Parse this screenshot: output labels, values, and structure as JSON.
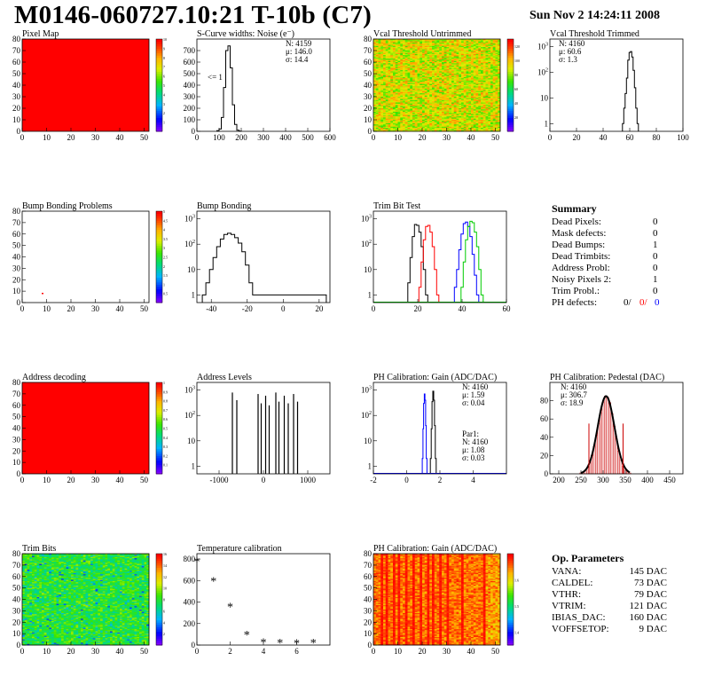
{
  "header": {
    "title": "M0146-060727.10:21 T-10b (C7)",
    "datetime": "Sun Nov  2 14:24:11 2008"
  },
  "chart_data": [
    {
      "id": "pixel_map",
      "type": "heatmap",
      "title": "Pixel Map",
      "xlim": [
        0,
        52
      ],
      "ylim": [
        0,
        80
      ],
      "xticks": [
        0,
        10,
        20,
        30,
        40,
        50
      ],
      "yticks": [
        0,
        10,
        20,
        30,
        40,
        50,
        60,
        70,
        80
      ],
      "palette_range": [
        0,
        10
      ],
      "palette_ticks": [
        1,
        2,
        3,
        4,
        5,
        6,
        7,
        8,
        9,
        10
      ],
      "uniform_value": 10
    },
    {
      "id": "scurve",
      "type": "line",
      "title": "S-Curve widths: Noise (e⁻)",
      "xlim": [
        0,
        600
      ],
      "ylim": [
        0,
        800
      ],
      "xticks": [
        0,
        100,
        200,
        300,
        400,
        500,
        600
      ],
      "yticks": [
        0,
        100,
        200,
        300,
        400,
        500,
        600,
        700
      ],
      "stats": [
        "N: 4159",
        "μ: 146.0",
        "σ: 14.4"
      ],
      "annotation": "<= 1",
      "x": [
        95,
        105,
        115,
        125,
        135,
        145,
        155,
        165,
        175,
        185,
        195
      ],
      "values": [
        5,
        20,
        120,
        380,
        700,
        740,
        550,
        230,
        60,
        10,
        2
      ]
    },
    {
      "id": "vcal_untrimmed",
      "type": "heatmap",
      "title": "Vcal Threshold Untrimmed",
      "xlim": [
        0,
        52
      ],
      "ylim": [
        0,
        80
      ],
      "xticks": [
        0,
        10,
        20,
        30,
        40,
        50
      ],
      "yticks": [
        0,
        10,
        20,
        30,
        40,
        50,
        60,
        70,
        80
      ],
      "palette_range": [
        0,
        130
      ],
      "palette_ticks": [
        20,
        40,
        60,
        80,
        100,
        120
      ],
      "typical_range": [
        70,
        110
      ]
    },
    {
      "id": "vcal_trimmed",
      "type": "line",
      "title": "Vcal Threshold Trimmed",
      "xlim": [
        0,
        100
      ],
      "ylim": [
        0.5,
        2000
      ],
      "log_y": true,
      "xticks": [
        0,
        20,
        40,
        60,
        80,
        100
      ],
      "yticks": [
        1,
        10,
        100,
        1000
      ],
      "stats": [
        "N: 4160",
        "μ: 60.6",
        "σ:  1.3"
      ],
      "x": [
        55,
        56,
        57,
        58,
        59,
        60,
        61,
        62,
        63,
        64,
        65,
        66
      ],
      "values": [
        1,
        4,
        15,
        60,
        300,
        600,
        650,
        400,
        120,
        25,
        4,
        1
      ]
    },
    {
      "id": "bump_problems",
      "type": "heatmap",
      "title": "Bump Bonding Problems",
      "xlim": [
        0,
        52
      ],
      "ylim": [
        0,
        80
      ],
      "xticks": [
        0,
        10,
        20,
        30,
        40,
        50
      ],
      "yticks": [
        0,
        10,
        20,
        30,
        40,
        50,
        60,
        70,
        80
      ],
      "palette_range": [
        0,
        5
      ],
      "palette_ticks": [
        0.5,
        1,
        1.5,
        2,
        2.5,
        3,
        3.5,
        4,
        4.5,
        5
      ],
      "points": [
        {
          "x": 8,
          "y": 7
        }
      ]
    },
    {
      "id": "bump_bonding",
      "type": "line",
      "title": "Bump Bonding",
      "xlim": [
        -48,
        26
      ],
      "ylim": [
        0.5,
        2000
      ],
      "log_y": true,
      "xticks": [
        -40,
        -20,
        0,
        20
      ],
      "yticks": [
        1,
        10,
        100,
        1000
      ],
      "x": [
        -44,
        -42,
        -40,
        -38,
        -36,
        -34,
        -32,
        -30,
        -28,
        -26,
        -24,
        -22,
        -20,
        -18,
        -16,
        22,
        23
      ],
      "values": [
        1,
        3,
        10,
        30,
        80,
        160,
        240,
        270,
        240,
        180,
        110,
        50,
        15,
        3,
        1,
        1,
        1
      ]
    },
    {
      "id": "trim_bit_test",
      "type": "line",
      "title": "Trim Bit Test",
      "xlim": [
        0,
        60
      ],
      "ylim": [
        0.5,
        2000
      ],
      "log_y": true,
      "xticks": [
        0,
        20,
        40,
        60
      ],
      "yticks": [
        1,
        10,
        100,
        1000
      ],
      "series": [
        {
          "color": "#000000",
          "x": [
            16,
            17,
            18,
            19,
            20,
            21,
            22,
            23,
            24
          ],
          "values": [
            3,
            30,
            200,
            600,
            550,
            300,
            80,
            10,
            1
          ]
        },
        {
          "color": "#ff0000",
          "x": [
            21,
            22,
            23,
            24,
            25,
            26,
            27,
            28,
            29
          ],
          "values": [
            2,
            20,
            150,
            500,
            550,
            300,
            80,
            10,
            1
          ]
        },
        {
          "color": "#0000ff",
          "x": [
            37,
            38,
            39,
            40,
            41,
            42,
            43,
            44,
            45,
            46,
            47
          ],
          "values": [
            2,
            10,
            60,
            250,
            650,
            750,
            500,
            200,
            40,
            6,
            1
          ]
        },
        {
          "color": "#00cc00",
          "x": [
            40,
            41,
            42,
            43,
            44,
            45,
            46,
            47,
            48,
            49
          ],
          "values": [
            2,
            20,
            150,
            500,
            800,
            700,
            300,
            80,
            10,
            1
          ]
        }
      ]
    },
    {
      "id": "address_decoding",
      "type": "heatmap",
      "title": "Address decoding",
      "xlim": [
        0,
        52
      ],
      "ylim": [
        0,
        80
      ],
      "xticks": [
        0,
        10,
        20,
        30,
        40,
        50
      ],
      "yticks": [
        0,
        10,
        20,
        30,
        40,
        50,
        60,
        70,
        80
      ],
      "palette_range": [
        0,
        1
      ],
      "palette_ticks": [
        0.1,
        0.2,
        0.3,
        0.4,
        0.5,
        0.6,
        0.7,
        0.8,
        0.9,
        1
      ],
      "uniform_value": 1
    },
    {
      "id": "address_levels",
      "type": "bar",
      "title": "Address Levels",
      "xlim": [
        -1500,
        1500
      ],
      "ylim": [
        0.5,
        2000
      ],
      "log_y": true,
      "xticks": [
        -1000,
        0,
        1000
      ],
      "yticks": [
        1,
        10,
        100,
        1000
      ],
      "x": [
        -700,
        -600,
        -120,
        -50,
        50,
        130,
        280,
        350,
        470,
        560,
        680,
        770
      ],
      "values": [
        800,
        400,
        700,
        300,
        600,
        250,
        800,
        350,
        600,
        300,
        700,
        350
      ]
    },
    {
      "id": "ph_gain",
      "type": "line",
      "title": "PH Calibration: Gain (ADC/DAC)",
      "xlim": [
        -2,
        6
      ],
      "ylim": [
        0.5,
        2000
      ],
      "log_y": true,
      "xticks": [
        -2,
        0,
        2,
        4
      ],
      "yticks": [
        1,
        10,
        100,
        1000
      ],
      "stats": [
        "N: 4160",
        "μ: 1.59",
        "σ: 0.04"
      ],
      "stats2": [
        "Par1:",
        "N: 4160",
        "μ: 1.08",
        "σ: 0.03"
      ],
      "series": [
        {
          "color": "#0000ff",
          "x": [
            0.96,
            1.0,
            1.04,
            1.08,
            1.12,
            1.16,
            1.2
          ],
          "values": [
            2,
            30,
            300,
            700,
            400,
            40,
            2
          ]
        },
        {
          "color": "#000000",
          "x": [
            1.45,
            1.5,
            1.55,
            1.6,
            1.65,
            1.7,
            1.75
          ],
          "values": [
            2,
            30,
            350,
            900,
            400,
            40,
            2
          ]
        }
      ]
    },
    {
      "id": "ph_pedestal",
      "type": "bar",
      "title": "PH Calibration: Pedestal (DAC)",
      "xlim": [
        180,
        480
      ],
      "ylim": [
        0,
        100
      ],
      "xticks": [
        200,
        250,
        300,
        350,
        400,
        450
      ],
      "yticks": [
        0,
        20,
        40,
        60,
        80
      ],
      "stats": [
        "N: 4160",
        "μ: 306.7",
        "σ: 18.9"
      ],
      "x": [
        250,
        255,
        260,
        265,
        270,
        275,
        280,
        285,
        290,
        295,
        300,
        305,
        310,
        315,
        320,
        325,
        330,
        335,
        340,
        345,
        350,
        355,
        360
      ],
      "values": [
        1,
        2,
        4,
        7,
        12,
        20,
        30,
        42,
        55,
        67,
        78,
        85,
        84,
        78,
        66,
        52,
        38,
        25,
        15,
        8,
        4,
        2,
        1
      ]
    },
    {
      "id": "trim_bits",
      "type": "heatmap",
      "title": "Trim Bits",
      "xlim": [
        0,
        52
      ],
      "ylim": [
        0,
        80
      ],
      "xticks": [
        0,
        10,
        20,
        30,
        40,
        50
      ],
      "yticks": [
        0,
        10,
        20,
        30,
        40,
        50,
        60,
        70,
        80
      ],
      "palette_range": [
        0,
        16
      ],
      "palette_ticks": [
        2,
        4,
        6,
        8,
        10,
        12,
        14,
        16
      ],
      "typical_range": [
        6,
        10
      ]
    },
    {
      "id": "temperature",
      "type": "scatter",
      "title": "Temperature calibration",
      "xlim": [
        0,
        8
      ],
      "ylim": [
        0,
        850
      ],
      "xticks": [
        0,
        2,
        4,
        6
      ],
      "yticks": [
        0,
        200,
        400,
        600,
        800
      ],
      "x": [
        0,
        1,
        2,
        3,
        4,
        5,
        6,
        7
      ],
      "values": [
        780,
        600,
        360,
        100,
        30,
        25,
        20,
        25
      ]
    },
    {
      "id": "ph_gain_map",
      "type": "heatmap",
      "title": "PH Calibration: Gain (ADC/DAC)",
      "xlim": [
        0,
        52
      ],
      "ylim": [
        0,
        80
      ],
      "xticks": [
        0,
        10,
        20,
        30,
        40,
        50
      ],
      "yticks": [
        0,
        10,
        20,
        30,
        40,
        50,
        60,
        70,
        80
      ],
      "palette_range": [
        1.35,
        1.7
      ],
      "palette_ticks": [
        1.4,
        1.5,
        1.6
      ],
      "column_stripes": [
        3,
        5,
        8,
        10,
        13,
        16,
        19,
        22,
        24,
        27,
        30,
        36,
        45
      ]
    }
  ],
  "summary": {
    "title": "Summary",
    "rows": [
      {
        "label": "Dead Pixels:",
        "value": "0"
      },
      {
        "label": "Mask defects:",
        "value": "0"
      },
      {
        "label": "Dead Bumps:",
        "value": "1"
      },
      {
        "label": "Dead Trimbits:",
        "value": "0"
      },
      {
        "label": "Address Probl:",
        "value": "0"
      },
      {
        "label": "Noisy Pixels 2:",
        "value": "1"
      },
      {
        "label": "Trim Probl.:",
        "value": "0"
      }
    ],
    "ph_label": "PH defects:",
    "ph_values": [
      "0/",
      "0/",
      "0"
    ],
    "ph_colors": [
      "#000000",
      "#ff0000",
      "#0000ff"
    ]
  },
  "op_params": {
    "title": "Op. Parameters",
    "rows": [
      {
        "label": "VANA:",
        "value": "145 DAC"
      },
      {
        "label": "CALDEL:",
        "value": "73 DAC"
      },
      {
        "label": "VTHR:",
        "value": "79 DAC"
      },
      {
        "label": "VTRIM:",
        "value": "121 DAC"
      },
      {
        "label": "IBIAS_DAC:",
        "value": "160 DAC"
      },
      {
        "label": "VOFFSETOP:",
        "value": "9 DAC"
      }
    ]
  }
}
